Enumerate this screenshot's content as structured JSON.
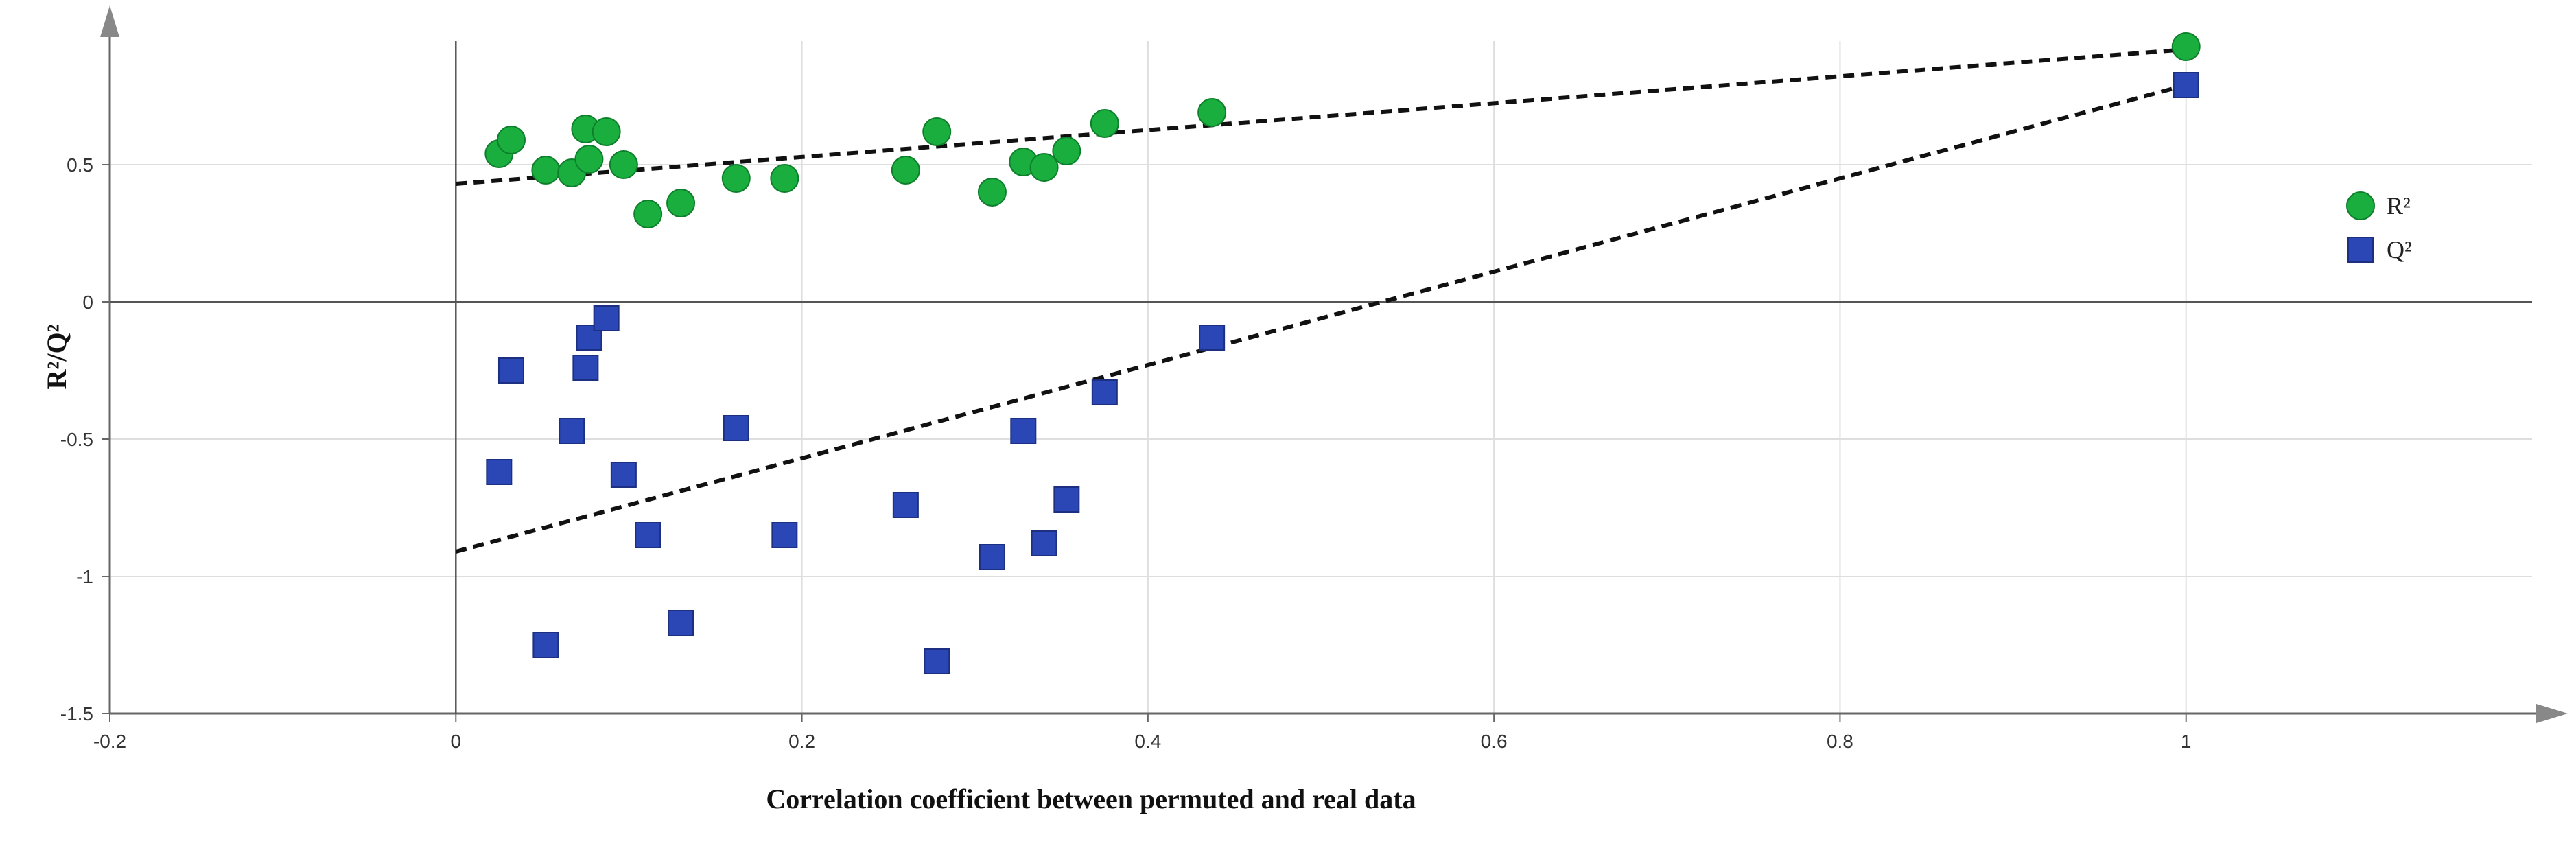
{
  "chart_data": {
    "type": "scatter",
    "title": "",
    "xlabel": "Correlation coefficient between permuted and real data",
    "ylabel": "R²/Q²",
    "xlim": [
      -0.2,
      1.2
    ],
    "ylim": [
      -1.5,
      0.95
    ],
    "grid": true,
    "legend_position": "right",
    "x_ticks": [
      -0.2,
      0,
      0.2,
      0.4,
      0.6,
      0.8,
      1
    ],
    "x_tick_labels": [
      "-0.2",
      "0",
      "0.2",
      "0.4",
      "0.6",
      "0.8",
      "1"
    ],
    "y_ticks": [
      -1.5,
      -1,
      -0.5,
      0,
      0.5
    ],
    "y_tick_labels": [
      "-1.5",
      "-1",
      "-0.5",
      "0",
      "0.5"
    ],
    "series": [
      {
        "name": "R²",
        "marker": "circle",
        "color": "#1aae3f",
        "x": [
          0.025,
          0.032,
          0.052,
          0.067,
          0.075,
          0.077,
          0.087,
          0.097,
          0.111,
          0.13,
          0.162,
          0.19,
          0.26,
          0.278,
          0.31,
          0.328,
          0.34,
          0.353,
          0.375,
          0.437,
          1.0
        ],
        "y": [
          0.54,
          0.59,
          0.48,
          0.47,
          0.63,
          0.52,
          0.62,
          0.5,
          0.32,
          0.36,
          0.45,
          0.45,
          0.48,
          0.62,
          0.4,
          0.51,
          0.49,
          0.55,
          0.65,
          0.69,
          0.93
        ],
        "regression_line": {
          "x": [
            0,
            1
          ],
          "y": [
            0.43,
            0.92
          ]
        }
      },
      {
        "name": "Q²",
        "marker": "square",
        "color": "#2b47b5",
        "x": [
          0.025,
          0.032,
          0.052,
          0.067,
          0.075,
          0.077,
          0.087,
          0.097,
          0.111,
          0.13,
          0.162,
          0.19,
          0.26,
          0.278,
          0.31,
          0.328,
          0.34,
          0.353,
          0.375,
          0.437,
          1.0
        ],
        "y": [
          -0.62,
          -0.25,
          -1.25,
          -0.47,
          -0.24,
          -0.13,
          -0.06,
          -0.63,
          -0.85,
          -1.17,
          -0.46,
          -0.85,
          -0.74,
          -1.31,
          -0.93,
          -0.47,
          -0.88,
          -0.72,
          -0.33,
          -0.13,
          0.79
        ],
        "regression_line": {
          "x": [
            0,
            1
          ],
          "y": [
            -0.91,
            0.79
          ]
        }
      }
    ]
  }
}
